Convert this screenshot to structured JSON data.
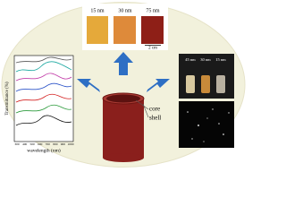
{
  "top_photo": {
    "labels": [
      "15 nm",
      "30 nm",
      "75 nm"
    ],
    "scale": "2 cm"
  },
  "plot": {
    "y_label": "Transmittance (%)",
    "x_label": "wavelength (nm)",
    "x_ticks": [
      "300",
      "400",
      "500",
      "600",
      "700",
      "800",
      "900",
      "1000"
    ]
  },
  "cylinder": {
    "core": "core",
    "shell": "shell"
  },
  "right_photo": {
    "labels": [
      "45 nm",
      "30 nm",
      "15 nm"
    ]
  }
}
